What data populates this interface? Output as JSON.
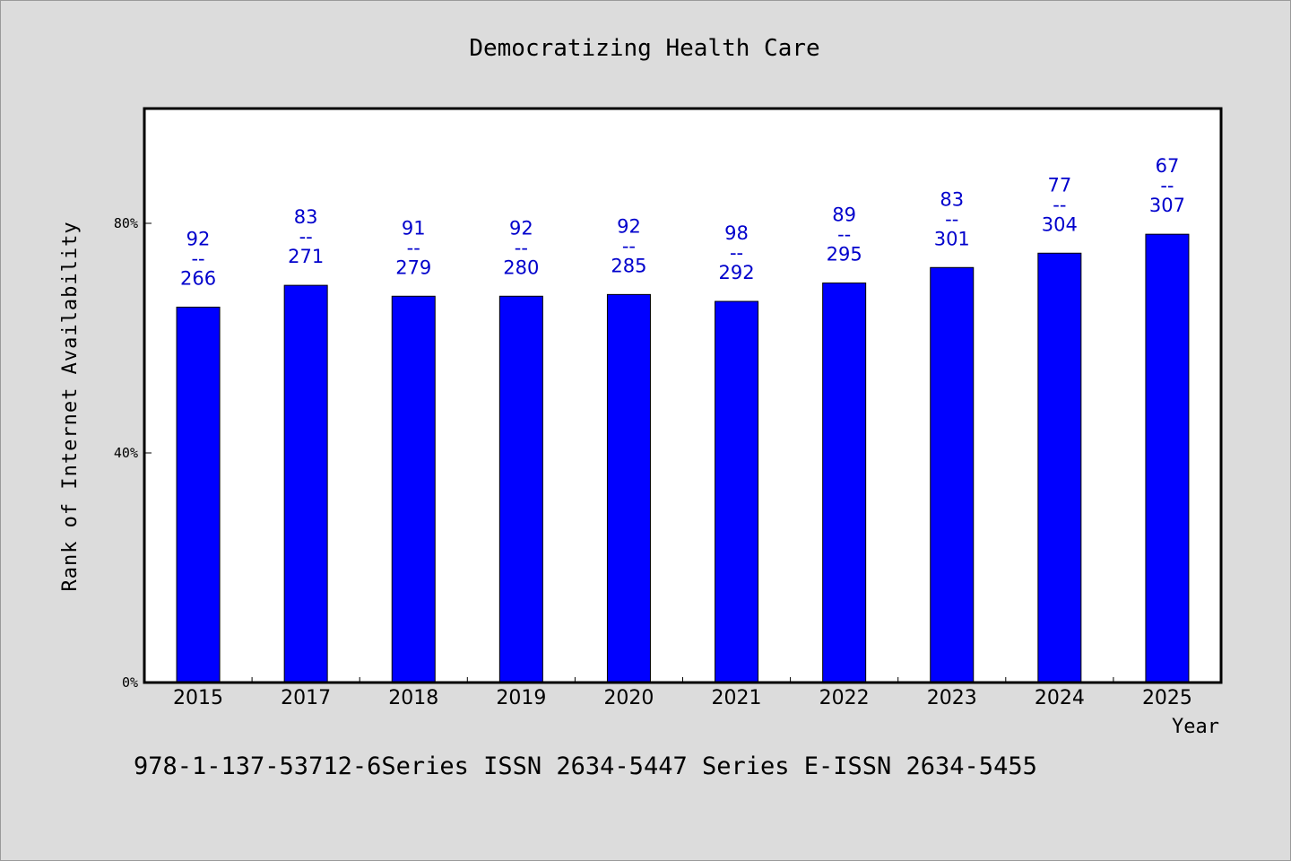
{
  "footer": "978-1-137-53712-6Series ISSN 2634-5447 Series E-ISSN 2634-5455",
  "colors": {
    "background": "#dcdcdc",
    "plot_background": "#ffffff",
    "bar_fill": "#0000ff",
    "label_text": "#0000cc"
  },
  "chart_data": {
    "type": "bar",
    "title": "Democratizing Health Care",
    "xlabel": "Year",
    "ylabel": "Rank of Internet Availability",
    "categories": [
      "2015",
      "2017",
      "2018",
      "2019",
      "2020",
      "2021",
      "2022",
      "2023",
      "2024",
      "2025"
    ],
    "values": [
      65.4,
      69.2,
      67.3,
      67.3,
      67.6,
      66.4,
      69.6,
      72.3,
      74.8,
      78.1
    ],
    "bar_labels": [
      [
        "92",
        "--",
        "266"
      ],
      [
        "83",
        "--",
        "271"
      ],
      [
        "91",
        "--",
        "279"
      ],
      [
        "92",
        "--",
        "280"
      ],
      [
        "92",
        "--",
        "285"
      ],
      [
        "98",
        "--",
        "292"
      ],
      [
        "89",
        "--",
        "295"
      ],
      [
        "83",
        "--",
        "301"
      ],
      [
        "77",
        "--",
        "304"
      ],
      [
        "67",
        "--",
        "307"
      ]
    ],
    "ylim": [
      0,
      100
    ],
    "yticks": [
      0,
      40,
      80
    ],
    "ytick_labels": [
      "0%",
      "40%",
      "80%"
    ],
    "grid": false,
    "legend": "none"
  }
}
